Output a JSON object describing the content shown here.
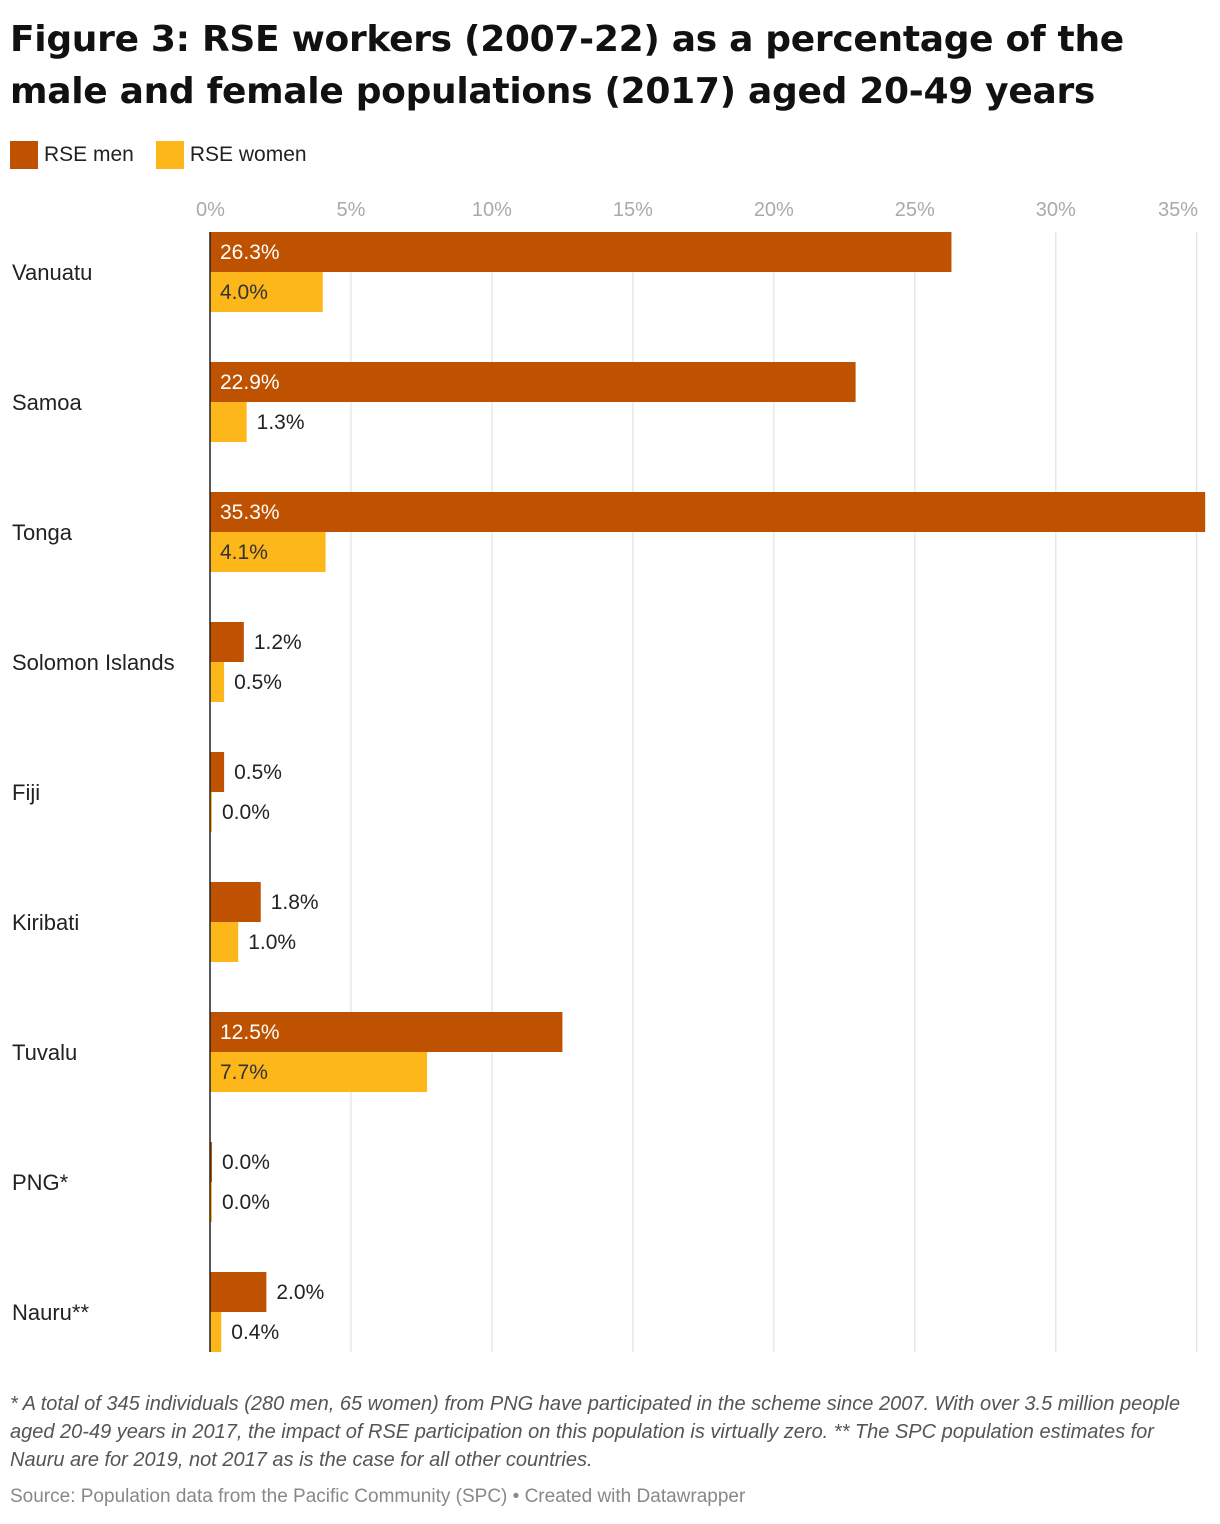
{
  "title": "Figure 3: RSE workers (2007-22) as a percentage of the male and female populations (2017) aged 20-49 years",
  "legend": [
    {
      "label": "RSE men",
      "color": "#bf5200"
    },
    {
      "label": "RSE women",
      "color": "#fdb71a"
    }
  ],
  "chart_data": {
    "type": "bar",
    "orientation": "horizontal",
    "categories": [
      "Vanuatu",
      "Samoa",
      "Tonga",
      "Solomon Islands",
      "Fiji",
      "Kiribati",
      "Tuvalu",
      "PNG*",
      "Nauru**"
    ],
    "series": [
      {
        "name": "RSE men",
        "color": "#bf5200",
        "values": [
          26.3,
          22.9,
          35.3,
          1.2,
          0.5,
          1.8,
          12.5,
          0.0,
          2.0
        ],
        "labels": [
          "26.3%",
          "22.9%",
          "35.3%",
          "1.2%",
          "0.5%",
          "1.8%",
          "12.5%",
          "0.0%",
          "2.0%"
        ]
      },
      {
        "name": "RSE women",
        "color": "#fdb71a",
        "values": [
          4.0,
          1.3,
          4.1,
          0.5,
          0.0,
          1.0,
          7.7,
          0.0,
          0.4
        ],
        "labels": [
          "4.0%",
          "1.3%",
          "4.1%",
          "0.5%",
          "0.0%",
          "1.0%",
          "7.7%",
          "0.0%",
          "0.4%"
        ]
      }
    ],
    "xlim": [
      0,
      35.4
    ],
    "xticks": [
      0,
      5,
      10,
      15,
      20,
      25,
      30,
      35
    ],
    "xtick_labels": [
      "0%",
      "5%",
      "10%",
      "15%",
      "20%",
      "25%",
      "30%",
      "35%"
    ],
    "grid": "vertical",
    "legend_position": "top-left"
  },
  "footnote": "* A total of 345 individuals (280 men, 65 women) from PNG have participated in the scheme since 2007. With over 3.5 million people aged 20-49 years in 2017, the impact of RSE participation on this population is virtually zero. ** The SPC population estimates for Nauru are for 2019, not 2017 as is the case for all other countries.",
  "source": "Source: Population data from the Pacific Community (SPC) • Created with Datawrapper"
}
